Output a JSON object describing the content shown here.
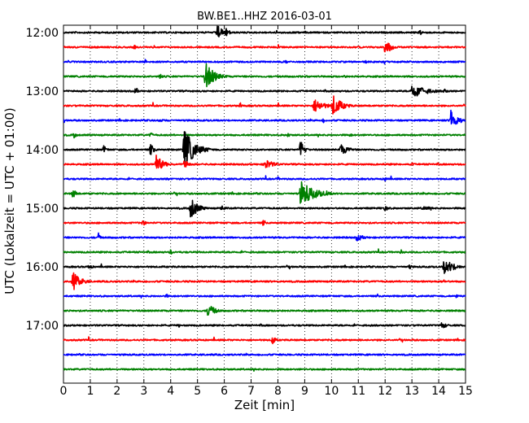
{
  "chart_data": {
    "type": "line",
    "title": "BW.BE1..HHZ 2016-03-01",
    "xlabel": "Zeit  [min]",
    "ylabel": "UTC (Lokalzeit = UTC + 01:00)",
    "xlim": [
      0,
      15
    ],
    "x_ticks": [
      0,
      1,
      2,
      3,
      4,
      5,
      6,
      7,
      8,
      9,
      10,
      11,
      12,
      13,
      14,
      15
    ],
    "y_ticks": [
      "12:00",
      "13:00",
      "14:00",
      "15:00",
      "16:00",
      "17:00"
    ],
    "grid": "vertical dotted",
    "trace_color_cycle": [
      "#000000",
      "#ff0000",
      "#0000ff",
      "#008000"
    ],
    "traces": [
      {
        "start": "12:00",
        "events": [
          [
            5.75,
            10,
            0.3
          ],
          [
            6.05,
            6,
            0.25
          ],
          [
            13.3,
            4,
            0.2
          ]
        ]
      },
      {
        "start": "12:15",
        "events": [
          [
            12.0,
            10,
            0.35
          ],
          [
            2.65,
            3,
            0.1
          ],
          [
            13.5,
            3,
            0.1
          ]
        ]
      },
      {
        "start": "12:30",
        "events": [
          [
            3.05,
            3,
            0.1
          ],
          [
            8.3,
            3,
            0.1
          ],
          [
            11.3,
            3,
            0.1
          ]
        ]
      },
      {
        "start": "12:45",
        "events": [
          [
            5.3,
            18,
            0.5
          ],
          [
            3.6,
            4,
            0.15
          ],
          [
            10.5,
            3,
            0.1
          ]
        ]
      },
      {
        "start": "13:00",
        "events": [
          [
            13.0,
            10,
            0.8
          ],
          [
            2.7,
            7,
            0.1
          ],
          [
            14.2,
            4,
            0.2
          ]
        ]
      },
      {
        "start": "13:15",
        "events": [
          [
            9.35,
            9,
            0.6
          ],
          [
            10.05,
            14,
            0.5
          ],
          [
            6.6,
            4,
            0.1
          ]
        ]
      },
      {
        "start": "13:30",
        "events": [
          [
            14.45,
            16,
            0.35
          ],
          [
            3.6,
            3,
            0.2
          ],
          [
            9.7,
            3,
            0.1
          ]
        ]
      },
      {
        "start": "13:45",
        "events": [
          [
            0.4,
            4,
            0.15
          ],
          [
            3.25,
            4,
            0.15
          ],
          [
            8.35,
            4,
            0.15
          ],
          [
            10.7,
            3,
            0.1
          ]
        ]
      },
      {
        "start": "14:00",
        "events": [
          [
            4.5,
            26,
            0.6
          ],
          [
            3.25,
            8,
            0.2
          ],
          [
            8.85,
            14,
            0.2
          ],
          [
            10.35,
            7,
            0.5
          ],
          [
            1.5,
            5,
            0.2
          ]
        ]
      },
      {
        "start": "14:15",
        "events": [
          [
            3.45,
            12,
            0.4
          ],
          [
            7.5,
            7,
            0.5
          ],
          [
            4.5,
            6,
            0.3
          ],
          [
            13.0,
            3,
            0.1
          ]
        ]
      },
      {
        "start": "14:30",
        "events": [
          [
            3.9,
            3,
            0.15
          ],
          [
            8.0,
            3,
            0.1
          ],
          [
            12.0,
            3,
            0.2
          ]
        ]
      },
      {
        "start": "14:45",
        "events": [
          [
            8.85,
            16,
            0.8
          ],
          [
            0.35,
            7,
            0.2
          ],
          [
            9.8,
            4,
            0.2
          ]
        ]
      },
      {
        "start": "15:00",
        "events": [
          [
            4.75,
            14,
            0.4
          ],
          [
            12.0,
            5,
            0.2
          ],
          [
            13.4,
            3,
            0.6
          ],
          [
            5.9,
            4,
            0.2
          ]
        ]
      },
      {
        "start": "15:15",
        "events": [
          [
            2.95,
            4,
            0.2
          ],
          [
            7.45,
            4,
            0.1
          ]
        ]
      },
      {
        "start": "15:30",
        "events": [
          [
            1.3,
            7,
            0.1
          ],
          [
            10.95,
            5,
            0.4
          ]
        ]
      },
      {
        "start": "15:45",
        "events": [
          [
            4.0,
            4,
            0.1
          ],
          [
            12.6,
            3,
            0.1
          ]
        ]
      },
      {
        "start": "16:00",
        "events": [
          [
            14.2,
            10,
            0.6
          ],
          [
            0.95,
            4,
            0.2
          ],
          [
            12.9,
            3,
            0.2
          ]
        ]
      },
      {
        "start": "16:15",
        "events": [
          [
            0.35,
            12,
            0.45
          ],
          [
            14.2,
            3,
            0.1
          ]
        ]
      },
      {
        "start": "16:30",
        "events": [
          [
            3.85,
            3,
            0.1
          ],
          [
            14.65,
            3,
            0.1
          ]
        ]
      },
      {
        "start": "16:45",
        "events": [
          [
            5.4,
            10,
            0.35
          ],
          [
            10.2,
            3,
            0.1
          ]
        ]
      },
      {
        "start": "17:00",
        "events": [
          [
            14.1,
            4,
            0.4
          ],
          [
            4.3,
            3,
            0.1
          ]
        ]
      },
      {
        "start": "17:15",
        "events": [
          [
            7.8,
            7,
            0.15
          ]
        ]
      },
      {
        "start": "17:30",
        "events": []
      },
      {
        "start": "17:45",
        "events": []
      }
    ]
  }
}
